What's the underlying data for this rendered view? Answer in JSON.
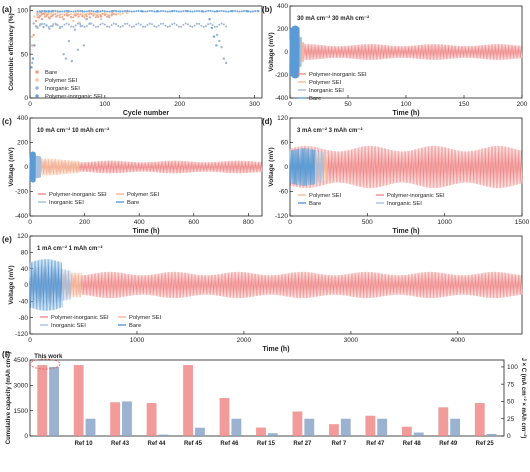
{
  "chart_data": [
    {
      "id": "a",
      "type": "scatter",
      "panel_label": "(a)",
      "xlabel": "Cycle number",
      "ylabel": "Coulombic efficiency (%)",
      "xlim": [
        0,
        310
      ],
      "ylim": [
        0,
        105
      ],
      "xticks": [
        0,
        100,
        200,
        300
      ],
      "yticks": [
        0,
        50,
        100
      ],
      "legend": "bottom-left",
      "series": [
        {
          "name": "Bare",
          "color": "#f2a08a",
          "x": [
            3,
            5,
            8,
            10,
            12,
            14,
            16,
            18,
            20,
            23,
            26,
            30,
            35,
            40,
            45,
            50,
            55,
            60,
            65,
            70,
            75,
            80,
            85,
            90,
            95,
            100,
            105,
            110
          ],
          "y": [
            60,
            72,
            88,
            95,
            92,
            94,
            90,
            96,
            93,
            95,
            91,
            94,
            93,
            95,
            90,
            94,
            92,
            95,
            93,
            94,
            95,
            92,
            96,
            94,
            93,
            95,
            94,
            96
          ]
        },
        {
          "name": "Polymer SEI",
          "color": "#f6c8a0",
          "x": [
            3,
            6,
            10,
            15,
            20,
            25,
            30,
            40,
            50,
            55,
            58,
            62,
            66,
            70,
            75,
            80,
            85,
            90,
            95,
            100,
            110,
            120,
            130
          ],
          "y": [
            70,
            93,
            97,
            98,
            98,
            97,
            98,
            99,
            98,
            92,
            88,
            95,
            86,
            93,
            90,
            97,
            95,
            98,
            90,
            96,
            98,
            99,
            97
          ]
        },
        {
          "name": "Inorganic SEI",
          "color": "#9fb6d6",
          "x": [
            3,
            5,
            8,
            10,
            14,
            18,
            22,
            26,
            30,
            35,
            40,
            45,
            48,
            52,
            56,
            60,
            64,
            68,
            72,
            76,
            80,
            250,
            253,
            256,
            259,
            262
          ],
          "y": [
            40,
            85,
            82,
            80,
            84,
            81,
            83,
            79,
            82,
            84,
            80,
            50,
            45,
            65,
            42,
            78,
            55,
            82,
            60,
            90,
            85,
            72,
            65,
            58,
            45,
            40
          ]
        },
        {
          "name": "Polymer-inorganic SEI",
          "color": "#6fa5dd",
          "x": [
            2,
            4,
            6,
            10,
            15,
            20,
            25,
            30,
            50,
            70,
            90,
            110,
            130,
            150,
            170,
            190,
            210,
            230,
            250,
            270,
            290,
            305,
            240,
            243,
            246,
            249
          ],
          "y": [
            35,
            45,
            60,
            95,
            98,
            99,
            99,
            99,
            99,
            99,
            99,
            99,
            99,
            99,
            99,
            99,
            99,
            99,
            99,
            99,
            99,
            99,
            90,
            80,
            70,
            60
          ]
        }
      ],
      "annotations": {
        "bare_scatter_points_low": [
          [
            112,
            30
          ],
          [
            115,
            35
          ],
          [
            108,
            40
          ],
          [
            60,
            40
          ]
        ]
      }
    },
    {
      "id": "b",
      "type": "line",
      "panel_label": "(b)",
      "condition": "30 mA cm⁻²  30 mAh cm⁻²",
      "xlabel": "Time (h)",
      "ylabel": "Voltage (mV)",
      "xlim": [
        0,
        200
      ],
      "ylim": [
        -400,
        400
      ],
      "xticks": [
        0,
        50,
        100,
        150,
        200
      ],
      "yticks": [
        -400,
        -200,
        0,
        200,
        400
      ],
      "legend": "center-left",
      "series": [
        {
          "name": "Polymer-inorganic SEI",
          "color": "#f08a8a",
          "amplitude": 60,
          "x_end": 200
        },
        {
          "name": "Polymer SEI",
          "color": "#f4b99a",
          "amplitude": 80,
          "x_end": 12
        },
        {
          "name": "Inorganic SEI",
          "color": "#a8bedb",
          "amplitude": 120,
          "x_end": 10
        },
        {
          "name": "Bare",
          "color": "#5b9bd5",
          "amplitude": 200,
          "x_end": 8
        }
      ]
    },
    {
      "id": "c",
      "type": "line",
      "panel_label": "(c)",
      "condition": "10 mA cm⁻²  10 mAh cm⁻²",
      "xlabel": "Time (h)",
      "ylabel": "Voltage (mV)",
      "xlim": [
        0,
        850
      ],
      "ylim": [
        -400,
        400
      ],
      "xticks": [
        0,
        200,
        400,
        600,
        800
      ],
      "yticks": [
        -400,
        -200,
        0,
        200,
        400
      ],
      "legend": "bottom-left",
      "series": [
        {
          "name": "Polymer-inorganic SEI",
          "color": "#f08a8a",
          "amplitude": 45,
          "x_end": 850
        },
        {
          "name": "Polymer SEI",
          "color": "#f4b99a",
          "amplitude": 60,
          "x_end": 180
        },
        {
          "name": "Inorganic SEI",
          "color": "#a8bedb",
          "amplitude": 80,
          "x_end": 40
        },
        {
          "name": "Bare",
          "color": "#5b9bd5",
          "amplitude": 110,
          "x_end": 20
        }
      ]
    },
    {
      "id": "d",
      "type": "line",
      "panel_label": "(d)",
      "condition": "3 mA cm⁻²  3 mAh cm⁻²",
      "xlabel": "Time (h)",
      "ylabel": "Voltage (mV)",
      "xlim": [
        0,
        1500
      ],
      "ylim": [
        -120,
        120
      ],
      "xticks": [
        0,
        500,
        1000,
        1500
      ],
      "yticks": [
        -120,
        -60,
        0,
        60,
        120
      ],
      "legend": "bottom-left",
      "series": [
        {
          "name": "Polymer SEI",
          "color": "#f4b99a",
          "amplitude": 35,
          "x_end": 240
        },
        {
          "name": "Polymer-inorganic SEI",
          "color": "#f08a8a",
          "amplitude": 45,
          "x_end": 1500
        },
        {
          "name": "Bare",
          "color": "#5b9bd5",
          "amplitude": 40,
          "x_end": 160
        },
        {
          "name": "Inorganic SEI",
          "color": "#a8bedb",
          "amplitude": 38,
          "x_end": 220
        }
      ]
    },
    {
      "id": "e",
      "type": "line",
      "panel_label": "(e)",
      "condition": "1 mA cm⁻²  1 mAh cm⁻²",
      "xlabel": "Time (h)",
      "ylabel": "Voltage (mV)",
      "xlim": [
        0,
        4600
      ],
      "ylim": [
        -120,
        120
      ],
      "xticks": [
        0,
        1000,
        2000,
        3000,
        4000
      ],
      "yticks": [
        -120,
        -80,
        -40,
        0,
        40,
        80,
        120
      ],
      "legend": "bottom-left",
      "series": [
        {
          "name": "Polymer-inorganic SEI",
          "color": "#f08a8a",
          "amplitude": 28,
          "x_end": 4600
        },
        {
          "name": "Polymer SEI",
          "color": "#f4b99a",
          "amplitude": 35,
          "x_end": 480
        },
        {
          "name": "Inorganic SEI",
          "color": "#a8bedb",
          "amplitude": 40,
          "x_end": 380
        },
        {
          "name": "Bare",
          "color": "#5b9bd5",
          "amplitude": 55,
          "x_end": 300
        }
      ]
    },
    {
      "id": "f",
      "type": "bar",
      "panel_label": "(f)",
      "ylabel": "Cumulative capacity (mAh cm⁻²)",
      "ylabel_right": "J × C (mA cm⁻² × mAh cm⁻²)",
      "ylim": [
        0,
        4500
      ],
      "ylim_right": [
        0,
        110
      ],
      "yticks": [
        0,
        1500,
        3000,
        4500
      ],
      "yticks_right": [
        0,
        25,
        50,
        75,
        100
      ],
      "highlight_label": "This work",
      "categories": [
        "This work",
        "Ref 10",
        "Ref 43",
        "Ref 44",
        "Ref 45",
        "Ref 46",
        "Ref 15",
        "Ref 27",
        "Ref 7",
        "Ref 47",
        "Ref 48",
        "Ref 49",
        "Ref 25"
      ],
      "category_labels_shown": [
        "",
        "Ref 10",
        "Ref 43",
        "Ref 44",
        "Ref 45",
        "Ref 46",
        "Ref 15",
        "Ref 27",
        "Ref 7",
        "Ref 47",
        "Ref 48",
        "Ref 49",
        "Ref 25"
      ],
      "series": [
        {
          "name": "Cumulative capacity",
          "axis": "left",
          "color": "#f08a8a",
          "values": [
            4200,
            4200,
            2000,
            1950,
            4200,
            2250,
            500,
            1450,
            700,
            1200,
            550,
            1700,
            1950
          ]
        },
        {
          "name": "J × C",
          "axis": "right",
          "color": "#8aa4c8",
          "values": [
            100,
            25,
            50,
            2,
            12,
            25,
            4,
            25,
            25,
            25,
            5,
            25,
            3
          ]
        }
      ]
    }
  ]
}
